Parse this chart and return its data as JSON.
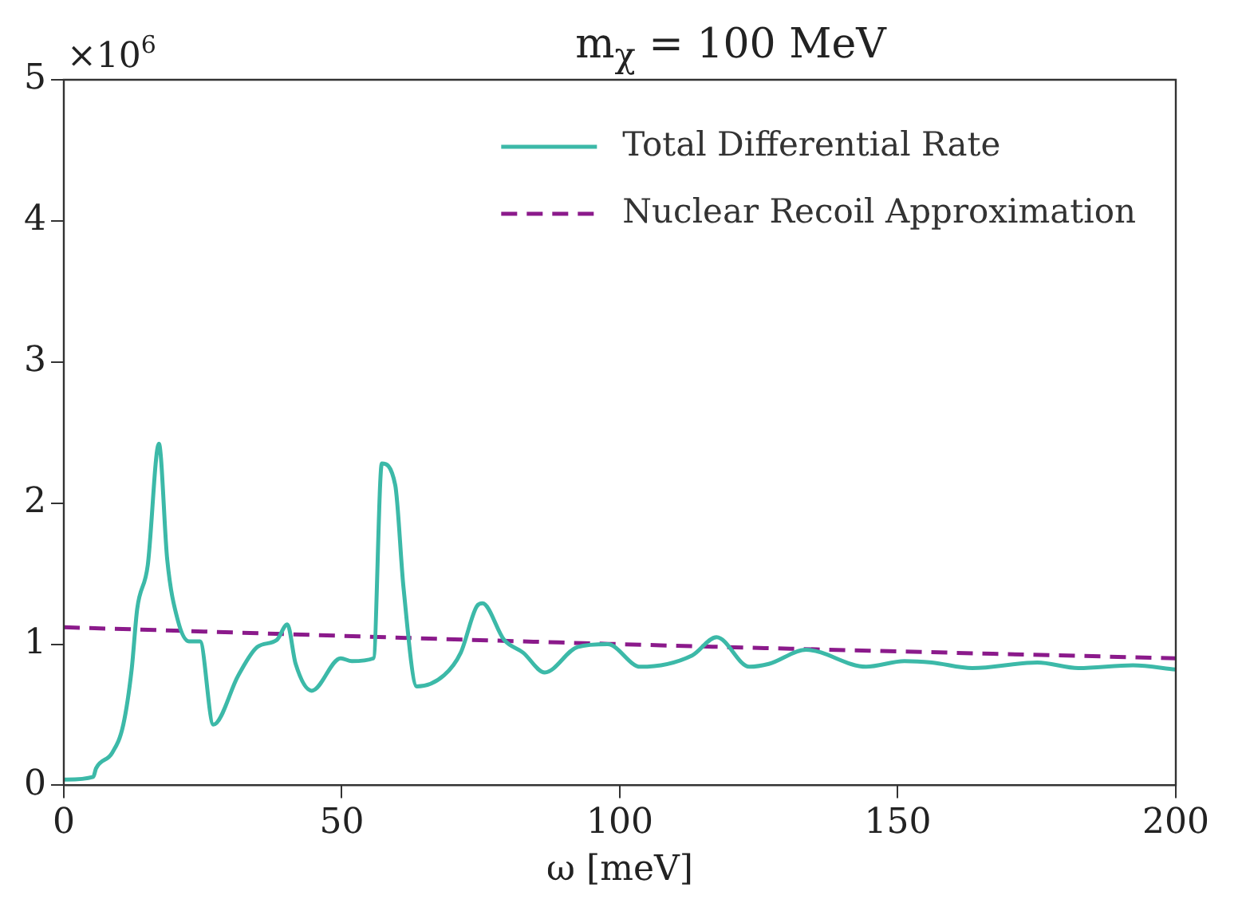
{
  "chart_data": {
    "type": "line",
    "title": "m$_{χ}$ = 100 MeV",
    "xlabel": "ω [meV]",
    "annotations": [
      "×10$^{6}$"
    ],
    "xlim": [
      0,
      200
    ],
    "xticks": [
      0,
      50,
      100,
      150,
      200
    ],
    "ylim": [
      0,
      5
    ],
    "yticks": [
      0,
      1,
      2,
      3,
      4,
      5
    ],
    "grid": false,
    "legend": "top right",
    "marker": "none",
    "series": [
      {
        "name": "Total Differential Rate",
        "color": "#3cb9a8",
        "line_style": "solid",
        "x": [
          0,
          5.3,
          5.8,
          8.7,
          10.7,
          12.2,
          13.2,
          15.1,
          17.1,
          18.6,
          20.5,
          22.5,
          24.5,
          26.9,
          31.4,
          34.8,
          38.3,
          40.2,
          41.7,
          44.6,
          49.8,
          51.8,
          55.7,
          57.2,
          59.6,
          61.1,
          63.5,
          68.4,
          71.4,
          74.3,
          75.3,
          79.2,
          82.6,
          86.5,
          92.4,
          97.8,
          103.7,
          113.0,
          117.4,
          123.3,
          126.8,
          133.5,
          144.3,
          151.2,
          156.1,
          163.4,
          175.1,
          182.5,
          192.3,
          200
        ],
        "values": [
          0.04,
          0.06,
          0.12,
          0.23,
          0.43,
          0.82,
          1.25,
          1.56,
          2.42,
          1.6,
          1.17,
          1.02,
          1.02,
          0.43,
          0.78,
          0.98,
          1.03,
          1.14,
          0.86,
          0.67,
          0.9,
          0.88,
          0.9,
          2.28,
          2.13,
          1.4,
          0.7,
          0.78,
          0.94,
          1.27,
          1.29,
          1.03,
          0.94,
          0.8,
          0.98,
          1.0,
          0.84,
          0.92,
          1.05,
          0.84,
          0.86,
          0.96,
          0.84,
          0.88,
          0.87,
          0.83,
          0.87,
          0.83,
          0.85,
          0.82
        ]
      },
      {
        "name": "Nuclear Recoil Approximation",
        "color": "#8b1a8b",
        "line_style": "dashed",
        "x": [
          0,
          100,
          200
        ],
        "values": [
          1.12,
          1.0,
          0.9
        ]
      }
    ]
  }
}
